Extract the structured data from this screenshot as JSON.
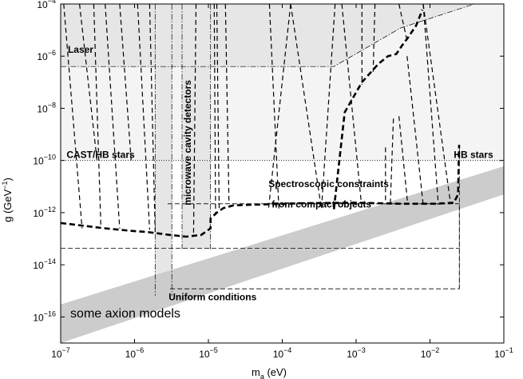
{
  "chart_data": {
    "type": "line",
    "title": "",
    "xlabel_main": "m",
    "xlabel_sub": "a",
    "xlabel_unit": " (eV)",
    "ylabel": "g (GeV",
    "ylabel_sup": "−1",
    "ylabel_close": ")",
    "x_scale": "log",
    "y_scale": "log",
    "xlim": [
      1e-07,
      0.1
    ],
    "ylim": [
      1e-17,
      0.0001
    ],
    "x_ticks": [
      {
        "value": 1e-07,
        "base": "10",
        "exp": "−7"
      },
      {
        "value": 1e-06,
        "base": "10",
        "exp": "−6"
      },
      {
        "value": 1e-05,
        "base": "10",
        "exp": "−5"
      },
      {
        "value": 0.0001,
        "base": "10",
        "exp": "−4"
      },
      {
        "value": 0.001,
        "base": "10",
        "exp": "−3"
      },
      {
        "value": 0.01,
        "base": "10",
        "exp": "−2"
      },
      {
        "value": 0.1,
        "base": "10",
        "exp": "−1"
      }
    ],
    "y_ticks": [
      {
        "value": 1e-16,
        "base": "10",
        "exp": "−16"
      },
      {
        "value": 1e-14,
        "base": "10",
        "exp": "−14"
      },
      {
        "value": 1e-12,
        "base": "10",
        "exp": "−12"
      },
      {
        "value": 1e-10,
        "base": "10",
        "exp": "−10"
      },
      {
        "value": 1e-08,
        "base": "10",
        "exp": "−8"
      },
      {
        "value": 1e-06,
        "base": "10",
        "exp": "−6"
      },
      {
        "value": 0.0001,
        "base": "10",
        "exp": "−4"
      }
    ],
    "regions": [
      {
        "name": "CAST/HB stars",
        "color": "#f4f4f4",
        "points": [
          [
            1e-07,
            0.0001
          ],
          [
            0.1,
            0.0001
          ],
          [
            0.1,
            1e-10
          ],
          [
            1e-07,
            1e-10
          ]
        ]
      },
      {
        "name": "Laser",
        "color": "#e6e6e6",
        "points": [
          [
            1e-07,
            0.0001
          ],
          [
            0.04,
            0.0001
          ],
          [
            0.004,
            1.2e-05
          ],
          [
            0.0005,
            4e-07
          ],
          [
            1e-07,
            4e-07
          ]
        ]
      },
      {
        "name": "microwave cavity detectors",
        "color": "#e6e6e6",
        "points": [
          [
            4.4e-06,
            0.0001
          ],
          [
            1.07e-05,
            0.0001
          ],
          [
            1.07e-05,
            4e-14
          ],
          [
            4.4e-06,
            4e-14
          ]
        ]
      },
      {
        "name": "microwave cavity detectors 2",
        "color": "#e6e6e6",
        "points": [
          [
            1.9e-06,
            0.0001
          ],
          [
            3.2e-06,
            0.0001
          ],
          [
            3.2e-06,
            6.5e-16
          ],
          [
            1.9e-06,
            6.5e-16
          ]
        ]
      },
      {
        "name": "some axion models",
        "color": "#cccccc",
        "points": [
          [
            1e-07,
            3e-16
          ],
          [
            0.1,
            6e-11
          ],
          [
            0.1,
            5e-12
          ],
          [
            1e-07,
            1e-17
          ]
        ]
      }
    ],
    "annotations": [
      {
        "text": "Laser",
        "x": 1.25e-07,
        "y": 1.35e-06
      },
      {
        "text": "CAST/HB stars",
        "x": 1.2e-07,
        "y": 1.25e-10
      },
      {
        "text": "HB stars",
        "x": 0.021,
        "y": 1.25e-10
      },
      {
        "text": "microwave cavity detectors",
        "x": 5.8e-06,
        "y": 1.9e-12,
        "rotate": -90
      },
      {
        "text": "Spectroscopic constraints",
        "x": 6.5e-05,
        "y": 9.5e-12
      },
      {
        "text": "from compact objects",
        "x": 7.2e-05,
        "y": 1.55e-12
      },
      {
        "text": "Uniform conditions",
        "x": 2.9e-06,
        "y": 4.3e-16
      },
      {
        "text": "some axion models",
        "x": 1.35e-07,
        "y": 9.5e-17,
        "size": 16
      }
    ],
    "series": [
      {
        "style": "thick-dashed",
        "x": [
          1e-07,
          4e-07,
          9e-07,
          1.5e-06,
          3e-06,
          5e-06,
          8e-06,
          1.07e-05,
          1.07e-05,
          1.3e-05,
          1.6e-05,
          2.2e-05,
          0.0002,
          0.001,
          0.004,
          0.012,
          0.021,
          0.024,
          0.0245,
          0.0248
        ],
        "y": [
          4e-13,
          2.5e-13,
          2e-13,
          1.8e-13,
          1.4e-13,
          1.2e-13,
          1.4e-13,
          2.5e-13,
          6e-13,
          1e-12,
          1.5e-12,
          1.9e-12,
          2.3e-12,
          2.4e-12,
          2.2e-12,
          2.2e-12,
          2.4e-12,
          5e-12,
          1e-10,
          4e-10
        ]
      },
      {
        "style": "thick-dashed",
        "x": [
          0.0005,
          0.0007,
          0.0012,
          0.0016,
          0.002,
          0.0027,
          0.0035,
          0.0042,
          0.005,
          0.0065,
          0.0079
        ],
        "y": [
          1.35e-12,
          7e-09,
          1e-07,
          2.5e-07,
          5e-07,
          1e-06,
          1.2e-06,
          2.6e-06,
          5e-06,
          1.5e-05,
          6e-05
        ]
      },
      {
        "style": "thin-dashed",
        "x": [
          2.8e-06,
          0.025,
          0.025,
          2.8e-06
        ],
        "y": [
          2.2e-12,
          2.2e-12,
          1.2e-15,
          1.2e-15
        ]
      },
      {
        "style": "thin-dashed",
        "x": [
          1e-07,
          0.025
        ],
        "y": [
          4.3e-14,
          4.3e-14
        ]
      },
      {
        "style": "thin-dashed",
        "x": [
          0.025,
          0.025
        ],
        "y": [
          1.2e-15,
          4e-10
        ]
      },
      {
        "style": "dashed",
        "x": [
          1.1e-07,
          1.95e-07
        ],
        "y": [
          0.0001,
          2.5e-13
        ]
      },
      {
        "style": "dashed",
        "x": [
          1.8e-07,
          3.1e-07
        ],
        "y": [
          0.0001,
          1e-10
        ]
      },
      {
        "style": "dashed",
        "x": [
          2.8e-07,
          3.5e-07
        ],
        "y": [
          0.0001,
          3e-13
        ]
      },
      {
        "style": "dashed",
        "x": [
          4e-07,
          6.3e-07
        ],
        "y": [
          0.0001,
          2.5e-13
        ]
      },
      {
        "style": "dashed",
        "x": [
          6.3e-07,
          9e-07
        ],
        "y": [
          0.0001,
          1e-10
        ]
      },
      {
        "style": "dashed",
        "x": [
          1.1e-06,
          1.6e-06
        ],
        "y": [
          0.0001,
          2.2e-13
        ]
      },
      {
        "style": "dashed",
        "x": [
          1.6e-06,
          1.9e-06
        ],
        "y": [
          0.0001,
          1.8e-13
        ]
      },
      {
        "style": "dashed",
        "x": [
          6.8e-06,
          6.3e-06
        ],
        "y": [
          0.0001,
          1.4e-13
        ]
      },
      {
        "style": "dashed",
        "x": [
          1.2e-05,
          1.25e-05
        ],
        "y": [
          0.0001,
          8e-13
        ]
      },
      {
        "style": "dashed",
        "x": [
          1.3e-05,
          1.4e-05
        ],
        "y": [
          0.0001,
          1.5e-12
        ]
      },
      {
        "style": "dashed",
        "x": [
          1.7e-05,
          1.9e-05
        ],
        "y": [
          0.0001,
          2.2e-12
        ]
      },
      {
        "style": "dashed",
        "x": [
          6.7e-05,
          9e-05
        ],
        "y": [
          0.0001,
          1.3e-12
        ]
      },
      {
        "style": "dashed",
        "x": [
          0.00013,
          6.5e-05
        ],
        "y": [
          0.0001,
          1.3e-12
        ]
      },
      {
        "style": "dashed",
        "x": [
          0.00013,
          0.00034
        ],
        "y": [
          0.0001,
          1.3e-12
        ]
      },
      {
        "style": "dashed",
        "x": [
          0.00052,
          0.00034
        ],
        "y": [
          0.0001,
          1.5e-12
        ]
      },
      {
        "style": "dashed",
        "x": [
          0.00064,
          0.0012
        ],
        "y": [
          0.0001,
          1.3e-12
        ]
      },
      {
        "style": "dashed",
        "x": [
          0.0012,
          0.0012
        ],
        "y": [
          0.0001,
          8e-08
        ]
      },
      {
        "style": "dashed",
        "x": [
          0.0018,
          0.0017
        ],
        "y": [
          0.0001,
          2.5e-07
        ]
      },
      {
        "style": "dashed",
        "x": [
          0.0038,
          0.0049
        ],
        "y": [
          0.0001,
          4e-06
        ]
      },
      {
        "style": "dashed",
        "x": [
          0.0025,
          0.0025
        ],
        "y": [
          3e-12,
          4e-10
        ]
      },
      {
        "style": "dashed",
        "x": [
          0.0032,
          0.0029
        ],
        "y": [
          4e-09,
          2e-12
        ]
      },
      {
        "style": "dashed",
        "x": [
          0.0038,
          0.005
        ],
        "y": [
          5e-09,
          2e-12
        ]
      },
      {
        "style": "dashed",
        "x": [
          0.0049,
          0.0081
        ],
        "y": [
          1e-06,
          2e-12
        ]
      },
      {
        "style": "dashed",
        "x": [
          0.0081,
          0.013
        ],
        "y": [
          0.0001,
          2e-12
        ]
      },
      {
        "style": "dashed",
        "x": [
          0.0081,
          0.019
        ],
        "y": [
          0.0001,
          2.2e-12
        ]
      },
      {
        "style": "dash-dot",
        "x": [
          4.4e-06,
          4.4e-06
        ],
        "y": [
          0.0001,
          4e-14
        ]
      },
      {
        "style": "dash-dot",
        "x": [
          1.07e-05,
          1.07e-05
        ],
        "y": [
          0.0001,
          4e-14
        ]
      },
      {
        "style": "dash-dot",
        "x": [
          1.9e-06,
          1.9e-06
        ],
        "y": [
          0.0001,
          6.5e-16
        ]
      },
      {
        "style": "dash-dot",
        "x": [
          3.2e-06,
          3.2e-06
        ],
        "y": [
          0.0001,
          6.5e-16
        ]
      },
      {
        "style": "dash-dot",
        "x": [
          1e-07,
          0.0005,
          0.004,
          0.04
        ],
        "y": [
          4e-07,
          4e-07,
          1.2e-05,
          0.0001
        ]
      },
      {
        "style": "dotted",
        "x": [
          1e-07,
          0.1
        ],
        "y": [
          1e-10,
          1e-10
        ]
      }
    ]
  }
}
